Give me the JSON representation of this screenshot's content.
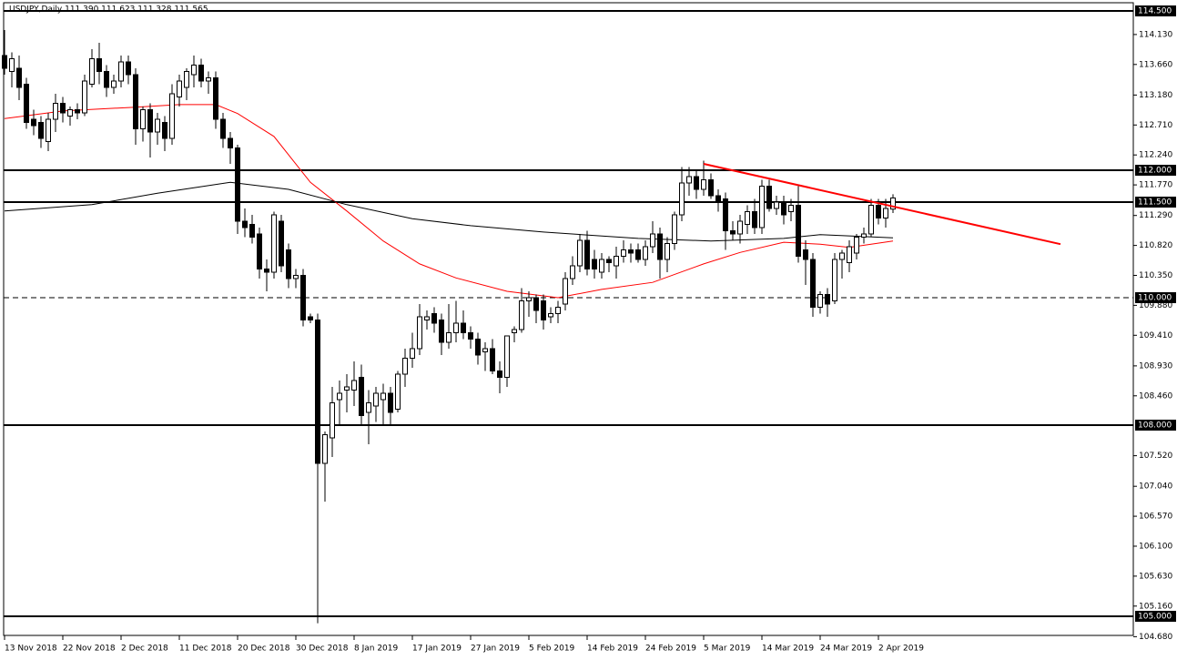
{
  "chart_data": {
    "type": "candlestick",
    "title": "USDJPY,Daily  111.390 111.623 111.328 111.565",
    "categories": [
      "13 Nov 2018",
      null,
      null,
      null,
      null,
      null,
      null,
      null,
      "22 Nov 2018",
      null,
      null,
      null,
      null,
      null,
      null,
      null,
      "2 Dec 2018",
      null,
      null,
      null,
      null,
      null,
      null,
      null,
      "11 Dec 2018",
      null,
      null,
      null,
      null,
      null,
      null,
      null,
      "20 Dec 2018",
      null,
      null,
      null,
      null,
      null,
      null,
      null,
      "30 Dec 2018",
      null,
      null,
      null,
      null,
      null,
      null,
      null,
      "8 Jan 2019",
      null,
      null,
      null,
      null,
      null,
      null,
      null,
      "17 Jan 2019",
      null,
      null,
      null,
      null,
      null,
      null,
      null,
      "27 Jan 2019",
      null,
      null,
      null,
      null,
      null,
      null,
      null,
      "5 Feb 2019",
      null,
      null,
      null,
      null,
      null,
      null,
      null,
      "14 Feb 2019",
      null,
      null,
      null,
      null,
      null,
      null,
      null,
      "24 Feb 2019",
      null,
      null,
      null,
      null,
      null,
      null,
      null,
      "5 Mar 2019",
      null,
      null,
      null,
      null,
      null,
      null,
      null,
      "14 Mar 2019",
      null,
      null,
      null,
      null,
      null,
      null,
      null,
      "24 Mar 2019",
      null,
      null,
      null,
      null,
      null,
      null,
      null,
      "2 Apr 2019",
      null,
      null
    ],
    "open": [
      113.8,
      113.55,
      113.6,
      113.35,
      112.8,
      112.75,
      112.45,
      112.8,
      113.05,
      112.85,
      112.95,
      112.9,
      113.35,
      113.75,
      113.55,
      113.3,
      113.4,
      113.7,
      113.5,
      112.65,
      112.95,
      112.6,
      112.75,
      112.5,
      113.15,
      113.3,
      113.5,
      113.65,
      113.4,
      113.45,
      112.8,
      112.5,
      112.35,
      111.2,
      111.15,
      111.0,
      110.45,
      110.4,
      111.2,
      110.75,
      110.3,
      110.35,
      109.7,
      109.65,
      107.4,
      107.8,
      108.4,
      108.55,
      108.55,
      108.75,
      108.2,
      108.3,
      108.4,
      108.5,
      108.25,
      108.8,
      109.05,
      109.2,
      109.65,
      109.75,
      109.65,
      109.3,
      109.45,
      109.6,
      109.45,
      109.35,
      109.15,
      109.2,
      108.85,
      108.75,
      109.45,
      109.5,
      109.95,
      110.0,
      109.95,
      109.7,
      109.75,
      109.9,
      110.3,
      110.5,
      110.9,
      110.6,
      110.4,
      110.6,
      110.5,
      110.65,
      110.75,
      110.75,
      110.6,
      110.8,
      111.0,
      110.6,
      110.85,
      111.3,
      111.8,
      111.9,
      111.7,
      111.85,
      111.6,
      111.55,
      111.05,
      111.0,
      111.15,
      111.35,
      111.1,
      111.75,
      111.4,
      111.5,
      111.35,
      111.45,
      110.75,
      110.6,
      109.85,
      110.05,
      109.95,
      110.6,
      110.55,
      110.7,
      110.95,
      111.0,
      111.45,
      111.25,
      111.39
    ],
    "high": [
      114.2,
      113.85,
      113.8,
      113.45,
      112.95,
      112.85,
      112.9,
      113.2,
      113.15,
      113.0,
      113.05,
      113.5,
      113.9,
      114.0,
      113.65,
      113.5,
      113.8,
      113.8,
      113.6,
      113.0,
      113.05,
      112.9,
      112.85,
      113.35,
      113.5,
      113.6,
      113.8,
      113.75,
      113.55,
      113.55,
      112.9,
      112.6,
      112.4,
      111.4,
      111.3,
      111.1,
      110.6,
      111.35,
      111.3,
      110.85,
      110.45,
      110.45,
      109.75,
      109.75,
      107.9,
      108.6,
      108.7,
      108.8,
      109.0,
      108.95,
      108.55,
      108.6,
      108.65,
      108.6,
      108.85,
      109.2,
      109.45,
      109.9,
      109.8,
      109.85,
      109.75,
      109.9,
      109.95,
      109.8,
      109.55,
      109.45,
      109.3,
      109.35,
      109.0,
      109.4,
      109.55,
      110.15,
      110.1,
      110.05,
      110.05,
      109.85,
      109.95,
      110.4,
      110.65,
      111.0,
      111.05,
      110.75,
      110.7,
      110.65,
      110.8,
      110.9,
      110.85,
      110.85,
      110.9,
      111.2,
      111.1,
      110.95,
      111.35,
      112.05,
      112.05,
      112.0,
      112.15,
      111.95,
      111.7,
      111.65,
      111.2,
      111.3,
      111.45,
      111.55,
      111.85,
      111.85,
      111.6,
      111.6,
      111.55,
      111.75,
      110.9,
      110.7,
      110.1,
      110.15,
      110.7,
      110.75,
      110.9,
      111.0,
      111.1,
      111.55,
      111.55,
      111.55,
      111.623
    ],
    "low": [
      113.5,
      113.3,
      113.1,
      112.65,
      112.55,
      112.35,
      112.3,
      112.6,
      112.75,
      112.7,
      112.8,
      112.85,
      113.3,
      113.35,
      113.15,
      113.2,
      113.3,
      113.35,
      112.4,
      112.45,
      112.2,
      112.4,
      112.3,
      112.4,
      113.0,
      113.1,
      113.3,
      113.3,
      113.2,
      112.65,
      112.35,
      112.1,
      111.0,
      110.95,
      110.85,
      110.3,
      110.1,
      110.3,
      110.4,
      110.15,
      110.15,
      109.55,
      109.6,
      104.89,
      106.8,
      107.5,
      108.0,
      108.2,
      108.3,
      108.0,
      107.7,
      108.05,
      108.0,
      108.0,
      108.2,
      108.6,
      108.9,
      109.1,
      109.5,
      109.45,
      109.1,
      109.2,
      109.3,
      109.35,
      109.2,
      108.95,
      108.85,
      108.8,
      108.5,
      108.6,
      109.3,
      109.45,
      109.7,
      109.6,
      109.5,
      109.6,
      109.6,
      109.8,
      110.2,
      110.4,
      110.35,
      110.3,
      110.3,
      110.4,
      110.3,
      110.55,
      110.55,
      110.55,
      110.5,
      110.7,
      110.3,
      110.4,
      110.75,
      111.2,
      111.6,
      111.55,
      111.6,
      111.55,
      111.35,
      110.75,
      110.9,
      110.85,
      111.0,
      111.0,
      111.0,
      111.35,
      111.3,
      111.15,
      111.2,
      110.55,
      110.2,
      109.7,
      109.75,
      109.7,
      109.9,
      110.3,
      110.4,
      110.6,
      110.85,
      110.95,
      111.15,
      111.1,
      111.328
    ],
    "close": [
      113.6,
      113.75,
      113.3,
      112.75,
      112.7,
      112.5,
      112.8,
      113.05,
      112.9,
      112.95,
      112.9,
      113.4,
      113.75,
      113.55,
      113.3,
      113.4,
      113.7,
      113.5,
      112.65,
      112.95,
      112.6,
      112.8,
      112.5,
      113.2,
      113.4,
      113.55,
      113.65,
      113.4,
      113.45,
      112.8,
      112.5,
      112.35,
      111.2,
      111.1,
      110.95,
      110.45,
      110.4,
      111.3,
      110.5,
      110.3,
      110.35,
      109.65,
      109.65,
      107.4,
      107.85,
      108.35,
      108.5,
      108.6,
      108.7,
      108.15,
      108.35,
      108.5,
      108.5,
      108.2,
      108.8,
      109.05,
      109.2,
      109.7,
      109.7,
      109.6,
      109.3,
      109.45,
      109.6,
      109.45,
      109.35,
      109.1,
      109.2,
      108.85,
      108.75,
      109.4,
      109.5,
      109.95,
      110.0,
      109.8,
      109.65,
      109.75,
      109.85,
      110.3,
      110.5,
      110.9,
      110.45,
      110.45,
      110.6,
      110.55,
      110.65,
      110.75,
      110.7,
      110.6,
      110.8,
      111.0,
      110.6,
      110.85,
      111.3,
      111.8,
      111.9,
      111.7,
      111.85,
      111.6,
      111.5,
      111.05,
      111.0,
      111.2,
      111.35,
      111.1,
      111.75,
      111.4,
      111.5,
      111.3,
      111.45,
      110.65,
      110.6,
      109.85,
      110.05,
      109.9,
      110.6,
      110.7,
      110.8,
      110.95,
      111.0,
      111.45,
      111.25,
      111.4,
      111.565
    ],
    "series": [
      {
        "color": "#ff0000",
        "x": [
          0,
          8,
          18,
          24,
          29,
          32,
          37,
          42,
          47,
          52,
          57,
          62,
          69,
          76,
          82,
          89,
          96,
          101,
          107,
          112,
          116,
          122
        ],
        "values": [
          112.81,
          112.93,
          112.99,
          113.03,
          113.03,
          112.89,
          112.53,
          111.81,
          111.36,
          110.89,
          110.53,
          110.31,
          110.1,
          110.0,
          110.13,
          110.24,
          110.53,
          110.71,
          110.87,
          110.84,
          110.79,
          110.89
        ]
      },
      {
        "color": "#000000",
        "x": [
          0,
          12,
          21,
          31,
          39,
          47,
          56,
          64,
          74,
          87,
          97,
          107,
          112,
          122
        ],
        "values": [
          111.36,
          111.46,
          111.64,
          111.81,
          111.7,
          111.46,
          111.24,
          111.13,
          111.03,
          110.93,
          110.89,
          110.93,
          110.99,
          110.94
        ]
      }
    ],
    "trendline": {
      "color": "#ff0000",
      "x": [
        96,
        145
      ],
      "values": [
        112.1,
        110.84
      ]
    },
    "levels": [
      {
        "value": 114.5,
        "label": "114.500"
      },
      {
        "value": 112,
        "label": "112.000"
      },
      {
        "value": 111.5,
        "label": "111.500"
      },
      {
        "value": 110,
        "label": "110.000",
        "dashed": true
      },
      {
        "value": 108,
        "label": "108.000"
      },
      {
        "value": 105,
        "label": "105.000"
      }
    ],
    "ylim": [
      104.714,
      114.643
    ],
    "yticks": [
      {
        "value": 114.13,
        "label": "114.130"
      },
      {
        "value": 113.66,
        "label": "113.660"
      },
      {
        "value": 113.18,
        "label": "113.180"
      },
      {
        "value": 112.71,
        "label": "112.710"
      },
      {
        "value": 112.24,
        "label": "112.240"
      },
      {
        "value": 111.77,
        "label": "111.770"
      },
      {
        "value": 111.29,
        "label": "111.290"
      },
      {
        "value": 110.82,
        "label": "110.820"
      },
      {
        "value": 110.35,
        "label": "110.350"
      },
      {
        "value": 109.88,
        "label": "109.880"
      },
      {
        "value": 109.41,
        "label": "109.410"
      },
      {
        "value": 108.93,
        "label": "108.930"
      },
      {
        "value": 108.46,
        "label": "108.460"
      },
      {
        "value": 107.52,
        "label": "107.520"
      },
      {
        "value": 107.04,
        "label": "107.040"
      },
      {
        "value": 106.57,
        "label": "106.570"
      },
      {
        "value": 106.1,
        "label": "106.100"
      },
      {
        "value": 105.63,
        "label": "105.630"
      },
      {
        "value": 105.16,
        "label": "105.160"
      },
      {
        "value": 104.68,
        "label": "104.680"
      }
    ]
  }
}
